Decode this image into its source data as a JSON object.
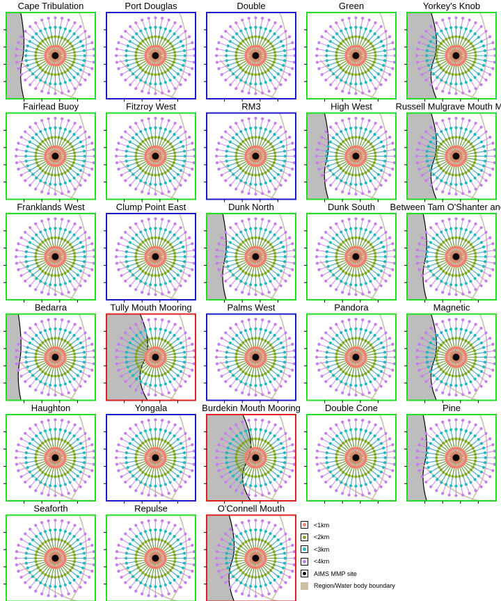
{
  "chart_data": {
    "type": "scatter",
    "panels": [
      {
        "title": "Cape Tribulation",
        "frame": "green"
      },
      {
        "title": "Port Douglas",
        "frame": "blue"
      },
      {
        "title": "Double",
        "frame": "blue"
      },
      {
        "title": "Green",
        "frame": "green"
      },
      {
        "title": "Yorkey's Knob",
        "frame": "green"
      },
      {
        "title": "Fairlead Buoy",
        "frame": "green"
      },
      {
        "title": "Fitzroy West",
        "frame": "green"
      },
      {
        "title": "RM3",
        "frame": "blue"
      },
      {
        "title": "High West",
        "frame": "green"
      },
      {
        "title": "Russell Mulgrave Mouth Mo",
        "frame": "green"
      },
      {
        "title": "Franklands West",
        "frame": "green"
      },
      {
        "title": "Clump Point East",
        "frame": "blue"
      },
      {
        "title": "Dunk North",
        "frame": "green"
      },
      {
        "title": "Dunk South",
        "frame": "green"
      },
      {
        "title": "Between Tam O'Shanter and T",
        "frame": "green"
      },
      {
        "title": "Bedarra",
        "frame": "green"
      },
      {
        "title": "Tully Mouth Mooring",
        "frame": "red"
      },
      {
        "title": "Palms West",
        "frame": "blue"
      },
      {
        "title": "Pandora",
        "frame": "green"
      },
      {
        "title": "Magnetic",
        "frame": "green"
      },
      {
        "title": "Haughton",
        "frame": "green"
      },
      {
        "title": "Yongala",
        "frame": "blue"
      },
      {
        "title": "Burdekin Mouth Mooring",
        "frame": "red"
      },
      {
        "title": "Double Cone",
        "frame": "green"
      },
      {
        "title": "Pine",
        "frame": "green"
      },
      {
        "title": "Seaforth",
        "frame": "green"
      },
      {
        "title": "Repulse",
        "frame": "green"
      },
      {
        "title": "O'Connell Mouth",
        "frame": "red"
      }
    ],
    "legend": [
      {
        "label": "<1km",
        "color": "#f08070",
        "kind": "dot"
      },
      {
        "label": "<2km",
        "color": "#7ea61e",
        "kind": "dot"
      },
      {
        "label": "<3km",
        "color": "#1fb8c0",
        "kind": "dot"
      },
      {
        "label": "<4km",
        "color": "#c87af0",
        "kind": "dot"
      },
      {
        "label": "AIMS MMP site",
        "color": "#000000",
        "kind": "dot"
      },
      {
        "label": "Region/Water body boundary",
        "color": "#cdbfa8",
        "kind": "swatch"
      }
    ],
    "colors": {
      "land": "#bdbdbd",
      "coast": "#0000ff",
      "boundary": "#cdbfa8",
      "frame_green": "#22dd22",
      "frame_blue": "#1a1acc",
      "frame_red": "#e02020"
    },
    "grid": false,
    "legend_placement": "bottom-right"
  }
}
